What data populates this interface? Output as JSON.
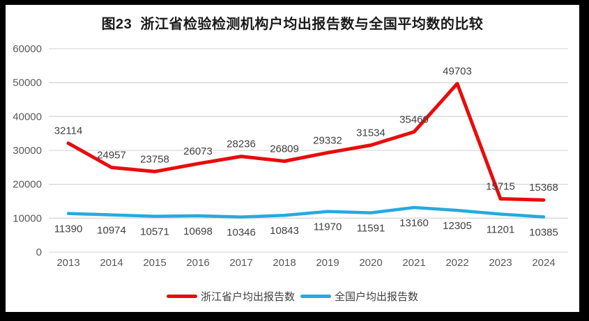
{
  "frame": {
    "border_color": "#000000",
    "background_color": "#ffffff"
  },
  "chart_data": {
    "type": "line",
    "title": "图23  浙江省检验检测机构户均出报告数与全国平均数的比较",
    "categories": [
      "2013",
      "2014",
      "2015",
      "2016",
      "2017",
      "2018",
      "2019",
      "2020",
      "2021",
      "2022",
      "2023",
      "2024"
    ],
    "series": [
      {
        "name": "浙江省户均出报告数",
        "color": "#e80c0c",
        "values": [
          32114,
          24957,
          23758,
          26073,
          28236,
          26809,
          29332,
          31534,
          35460,
          49703,
          15715,
          15368
        ],
        "label_position": "above"
      },
      {
        "name": "全国户均出报告数",
        "color": "#27a9e0",
        "values": [
          11390,
          10974,
          10571,
          10698,
          10346,
          10843,
          11970,
          11591,
          13160,
          12305,
          11201,
          10385
        ],
        "label_position": "below"
      }
    ],
    "xlabel": "",
    "ylabel": "",
    "ylim": [
      0,
      60000
    ],
    "ytick_interval": 10000,
    "ytick_labels": [
      "0",
      "10000",
      "20000",
      "30000",
      "40000",
      "50000",
      "60000"
    ],
    "grid": "horizontal",
    "gridline_color": "#d9d9d9",
    "axis_label_color": "#595959",
    "data_label_color": "#404040",
    "legend_position": "bottom"
  }
}
